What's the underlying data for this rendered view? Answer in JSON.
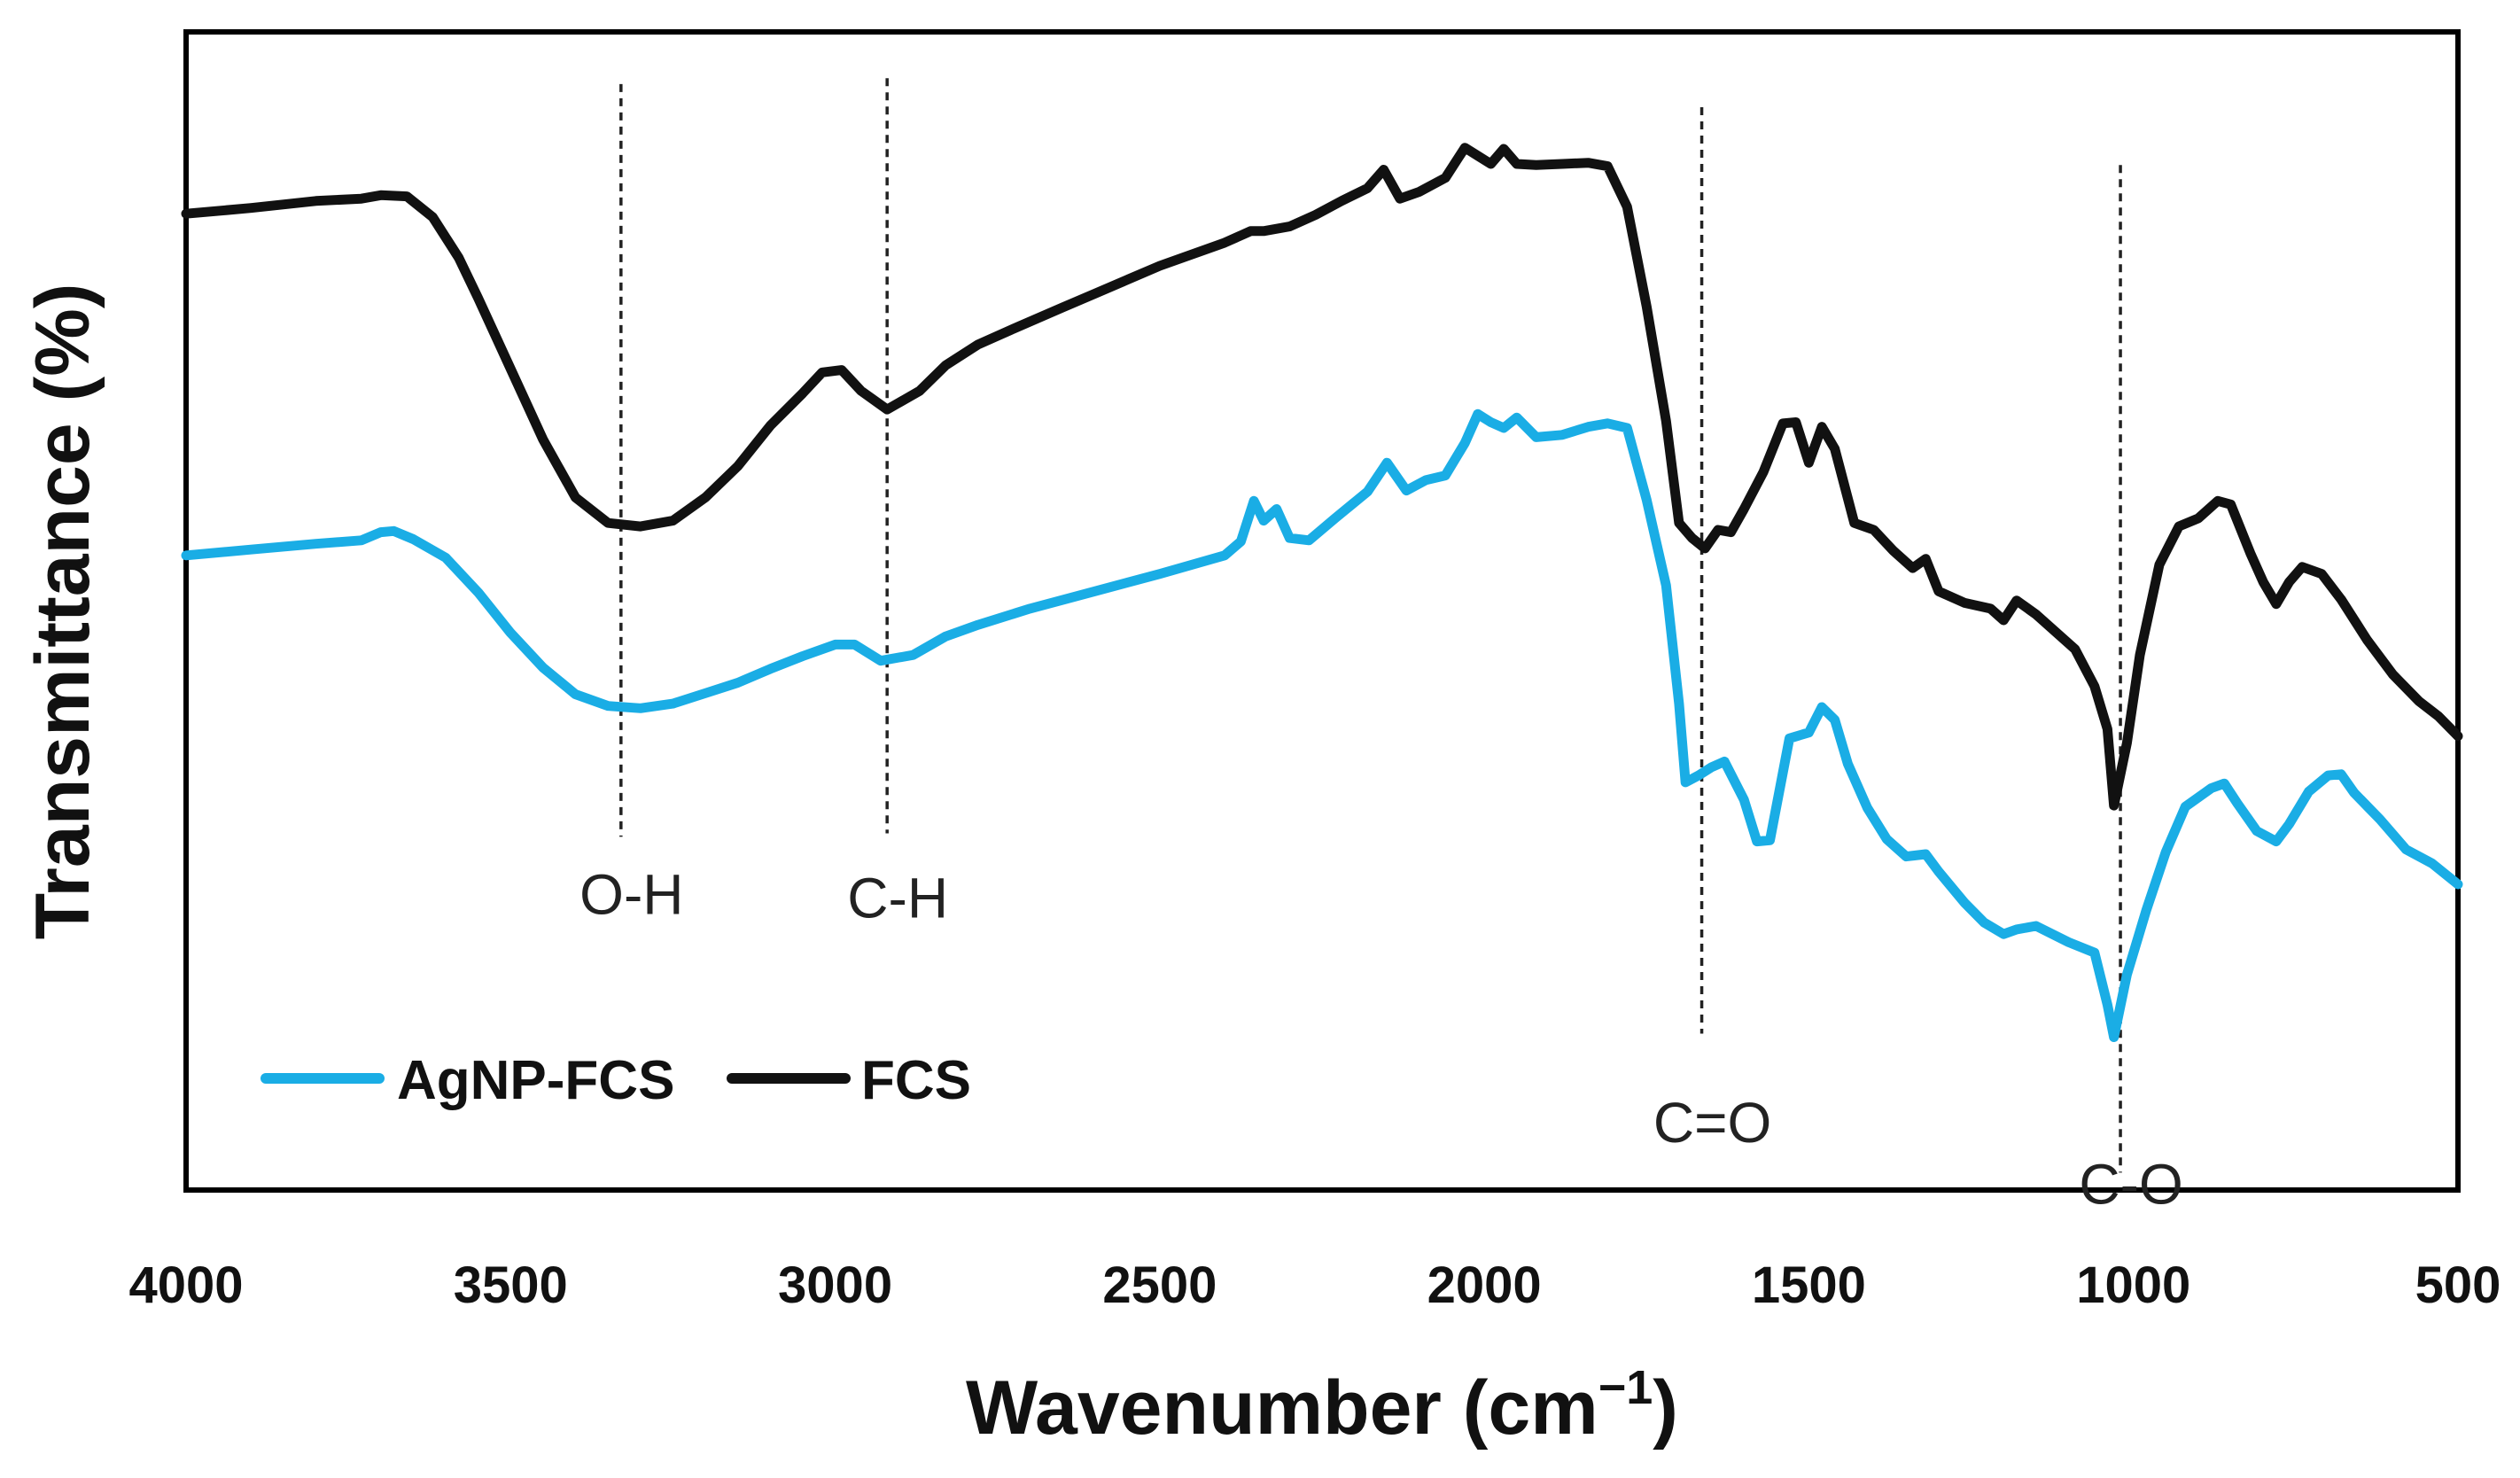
{
  "chart_data": {
    "type": "line",
    "title": "",
    "xlabel": "Wavenumber (cm",
    "xlabel_superscript": "−1",
    "xlabel_close": ")",
    "ylabel": "Transmittance (%)",
    "xlim": [
      4000,
      500
    ],
    "ylim": [
      0,
      100
    ],
    "x_ticks": [
      {
        "value": 4000,
        "label": "4000"
      },
      {
        "value": 3500,
        "label": "3500"
      },
      {
        "value": 3000,
        "label": "3000"
      },
      {
        "value": 2500,
        "label": "2500"
      },
      {
        "value": 2000,
        "label": "2000"
      },
      {
        "value": 1500,
        "label": "1500"
      },
      {
        "value": 1000,
        "label": "1000"
      },
      {
        "value": 500,
        "label": "500"
      }
    ],
    "grid": false,
    "legend_position": "bottom-left",
    "series": [
      {
        "name": "AgNP-FCS",
        "color": "#1AADE5",
        "points": [
          [
            4000,
            54.8
          ],
          [
            3900,
            55.3
          ],
          [
            3800,
            55.8
          ],
          [
            3730,
            56.1
          ],
          [
            3700,
            56.8
          ],
          [
            3680,
            56.9
          ],
          [
            3650,
            56.2
          ],
          [
            3600,
            54.6
          ],
          [
            3550,
            51.6
          ],
          [
            3500,
            48.1
          ],
          [
            3450,
            45.1
          ],
          [
            3400,
            42.8
          ],
          [
            3350,
            41.8
          ],
          [
            3300,
            41.6
          ],
          [
            3250,
            42.0
          ],
          [
            3200,
            42.9
          ],
          [
            3150,
            43.8
          ],
          [
            3100,
            45.0
          ],
          [
            3050,
            46.1
          ],
          [
            3000,
            47.1
          ],
          [
            2970,
            47.1
          ],
          [
            2930,
            45.7
          ],
          [
            2880,
            46.2
          ],
          [
            2830,
            47.8
          ],
          [
            2780,
            48.8
          ],
          [
            2700,
            50.2
          ],
          [
            2600,
            51.7
          ],
          [
            2500,
            53.2
          ],
          [
            2400,
            54.8
          ],
          [
            2375,
            56.0
          ],
          [
            2355,
            59.5
          ],
          [
            2340,
            57.8
          ],
          [
            2320,
            58.8
          ],
          [
            2300,
            56.3
          ],
          [
            2270,
            56.1
          ],
          [
            2230,
            58.0
          ],
          [
            2180,
            60.3
          ],
          [
            2150,
            62.8
          ],
          [
            2120,
            60.4
          ],
          [
            2090,
            61.3
          ],
          [
            2060,
            61.7
          ],
          [
            2030,
            64.5
          ],
          [
            2010,
            67.0
          ],
          [
            1990,
            66.3
          ],
          [
            1970,
            65.8
          ],
          [
            1950,
            66.7
          ],
          [
            1920,
            65.0
          ],
          [
            1880,
            65.2
          ],
          [
            1840,
            65.9
          ],
          [
            1810,
            66.2
          ],
          [
            1780,
            65.8
          ],
          [
            1750,
            59.6
          ],
          [
            1720,
            52.2
          ],
          [
            1700,
            42.0
          ],
          [
            1690,
            35.2
          ],
          [
            1670,
            35.8
          ],
          [
            1650,
            36.5
          ],
          [
            1630,
            37.0
          ],
          [
            1600,
            33.7
          ],
          [
            1580,
            30.1
          ],
          [
            1560,
            30.2
          ],
          [
            1530,
            39.0
          ],
          [
            1500,
            39.5
          ],
          [
            1480,
            41.7
          ],
          [
            1460,
            40.6
          ],
          [
            1440,
            36.8
          ],
          [
            1410,
            33.0
          ],
          [
            1380,
            30.3
          ],
          [
            1350,
            28.8
          ],
          [
            1320,
            29.0
          ],
          [
            1300,
            27.5
          ],
          [
            1260,
            24.8
          ],
          [
            1230,
            23.1
          ],
          [
            1200,
            22.1
          ],
          [
            1180,
            22.5
          ],
          [
            1150,
            22.8
          ],
          [
            1100,
            21.4
          ],
          [
            1060,
            20.5
          ],
          [
            1040,
            16.0
          ],
          [
            1030,
            13.2
          ],
          [
            1010,
            18.6
          ],
          [
            980,
            24.2
          ],
          [
            950,
            29.2
          ],
          [
            920,
            33.1
          ],
          [
            880,
            34.7
          ],
          [
            860,
            35.1
          ],
          [
            840,
            33.4
          ],
          [
            810,
            31.0
          ],
          [
            780,
            30.1
          ],
          [
            760,
            31.6
          ],
          [
            730,
            34.4
          ],
          [
            700,
            35.8
          ],
          [
            680,
            35.9
          ],
          [
            660,
            34.3
          ],
          [
            620,
            32.0
          ],
          [
            580,
            29.4
          ],
          [
            540,
            28.2
          ],
          [
            500,
            26.4
          ]
        ]
      },
      {
        "name": "FCS",
        "color": "#111111",
        "points": [
          [
            4000,
            84.3
          ],
          [
            3900,
            84.8
          ],
          [
            3800,
            85.4
          ],
          [
            3730,
            85.6
          ],
          [
            3700,
            85.9
          ],
          [
            3660,
            85.8
          ],
          [
            3620,
            84.0
          ],
          [
            3580,
            80.5
          ],
          [
            3550,
            77.0
          ],
          [
            3500,
            70.9
          ],
          [
            3450,
            64.8
          ],
          [
            3400,
            59.8
          ],
          [
            3350,
            57.6
          ],
          [
            3300,
            57.3
          ],
          [
            3250,
            57.8
          ],
          [
            3200,
            59.8
          ],
          [
            3150,
            62.5
          ],
          [
            3100,
            66.0
          ],
          [
            3050,
            68.8
          ],
          [
            3020,
            70.6
          ],
          [
            2990,
            70.8
          ],
          [
            2960,
            69.0
          ],
          [
            2920,
            67.4
          ],
          [
            2870,
            69.0
          ],
          [
            2830,
            71.2
          ],
          [
            2780,
            73.0
          ],
          [
            2720,
            74.5
          ],
          [
            2650,
            76.2
          ],
          [
            2600,
            77.4
          ],
          [
            2500,
            79.8
          ],
          [
            2400,
            81.8
          ],
          [
            2360,
            82.8
          ],
          [
            2340,
            82.8
          ],
          [
            2300,
            83.2
          ],
          [
            2260,
            84.2
          ],
          [
            2220,
            85.4
          ],
          [
            2180,
            86.5
          ],
          [
            2155,
            88.1
          ],
          [
            2130,
            85.6
          ],
          [
            2100,
            86.2
          ],
          [
            2060,
            87.4
          ],
          [
            2030,
            90.0
          ],
          [
            2010,
            89.3
          ],
          [
            1990,
            88.6
          ],
          [
            1970,
            89.9
          ],
          [
            1950,
            88.6
          ],
          [
            1920,
            88.5
          ],
          [
            1880,
            88.6
          ],
          [
            1840,
            88.7
          ],
          [
            1810,
            88.4
          ],
          [
            1780,
            84.9
          ],
          [
            1750,
            76.3
          ],
          [
            1720,
            66.4
          ],
          [
            1700,
            57.6
          ],
          [
            1680,
            56.3
          ],
          [
            1660,
            55.4
          ],
          [
            1640,
            57.0
          ],
          [
            1620,
            56.8
          ],
          [
            1600,
            58.8
          ],
          [
            1570,
            62.0
          ],
          [
            1540,
            66.2
          ],
          [
            1520,
            66.3
          ],
          [
            1500,
            62.8
          ],
          [
            1480,
            65.9
          ],
          [
            1460,
            64.0
          ],
          [
            1430,
            57.6
          ],
          [
            1400,
            57.0
          ],
          [
            1370,
            55.2
          ],
          [
            1340,
            53.7
          ],
          [
            1320,
            54.5
          ],
          [
            1300,
            51.7
          ],
          [
            1260,
            50.7
          ],
          [
            1220,
            50.2
          ],
          [
            1200,
            49.2
          ],
          [
            1180,
            50.9
          ],
          [
            1150,
            49.7
          ],
          [
            1120,
            48.2
          ],
          [
            1090,
            46.7
          ],
          [
            1060,
            43.5
          ],
          [
            1040,
            39.8
          ],
          [
            1030,
            33.2
          ],
          [
            1010,
            38.6
          ],
          [
            990,
            46.2
          ],
          [
            960,
            54.0
          ],
          [
            930,
            57.3
          ],
          [
            900,
            58.0
          ],
          [
            870,
            59.5
          ],
          [
            850,
            59.2
          ],
          [
            820,
            55.0
          ],
          [
            800,
            52.5
          ],
          [
            780,
            50.6
          ],
          [
            760,
            52.5
          ],
          [
            740,
            53.8
          ],
          [
            710,
            53.2
          ],
          [
            680,
            51.0
          ],
          [
            640,
            47.5
          ],
          [
            600,
            44.5
          ],
          [
            560,
            42.2
          ],
          [
            530,
            40.9
          ],
          [
            500,
            39.2
          ]
        ]
      }
    ],
    "annotations": [
      {
        "label": "O-H",
        "x": 3330,
        "y_top": 95.5,
        "y_bottom": 30.5,
        "label_y": 25.5
      },
      {
        "label": "C-H",
        "x": 2920,
        "y_top": 96.0,
        "y_bottom": 30.8,
        "label_y": 25.2
      },
      {
        "label": "C=O",
        "x": 1665,
        "y_top": 93.5,
        "y_bottom": 13.5,
        "label_y": 5.8
      },
      {
        "label": "C-O",
        "x": 1020,
        "y_top": 88.5,
        "y_bottom": 1.5,
        "label_y": 0.5
      }
    ]
  }
}
